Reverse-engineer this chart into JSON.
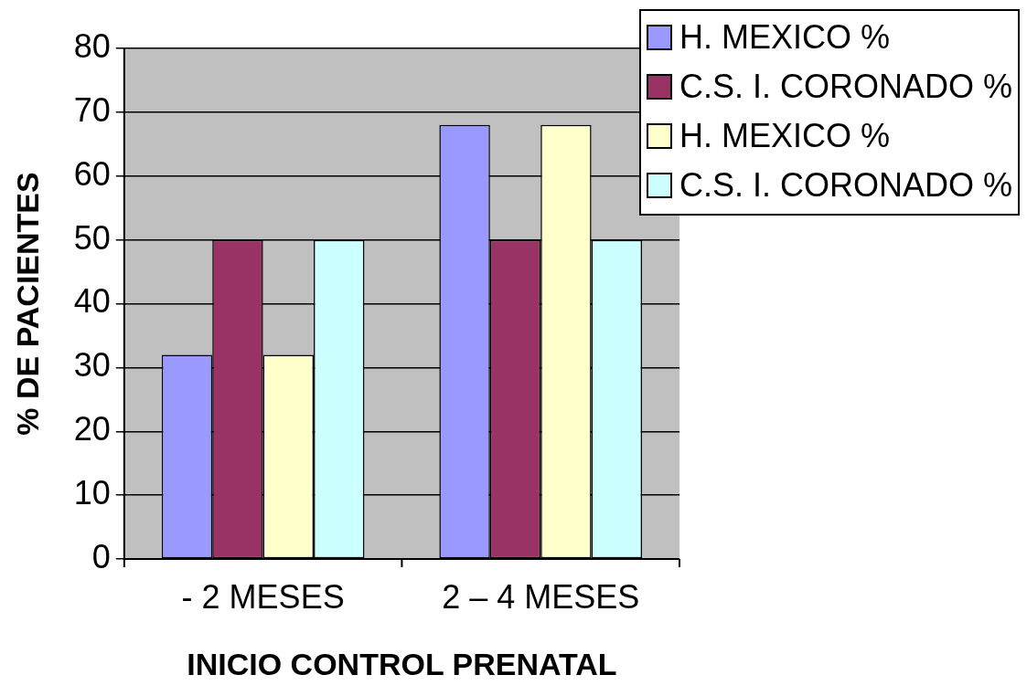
{
  "chart_data": {
    "type": "bar",
    "xlabel": "INICIO CONTROL PRENATAL",
    "ylabel": "% DE PACIENTES",
    "categories": [
      "- 2 MESES",
      "2 – 4 MESES"
    ],
    "series": [
      {
        "name": "H. MEXICO %",
        "color": "#9999ff",
        "values": [
          32,
          68
        ]
      },
      {
        "name": "C.S. I. CORONADO %",
        "color": "#993366",
        "values": [
          50,
          50
        ]
      },
      {
        "name": "H. MEXICO %",
        "color": "#ffffcc",
        "values": [
          32,
          68
        ]
      },
      {
        "name": "C.S. I. CORONADO %",
        "color": "#ccffff",
        "values": [
          50,
          50
        ]
      }
    ],
    "ylim": [
      0,
      80
    ],
    "yticks": [
      0,
      10,
      20,
      30,
      40,
      50,
      60,
      70,
      80
    ],
    "grid": "y",
    "legend": "top right"
  }
}
